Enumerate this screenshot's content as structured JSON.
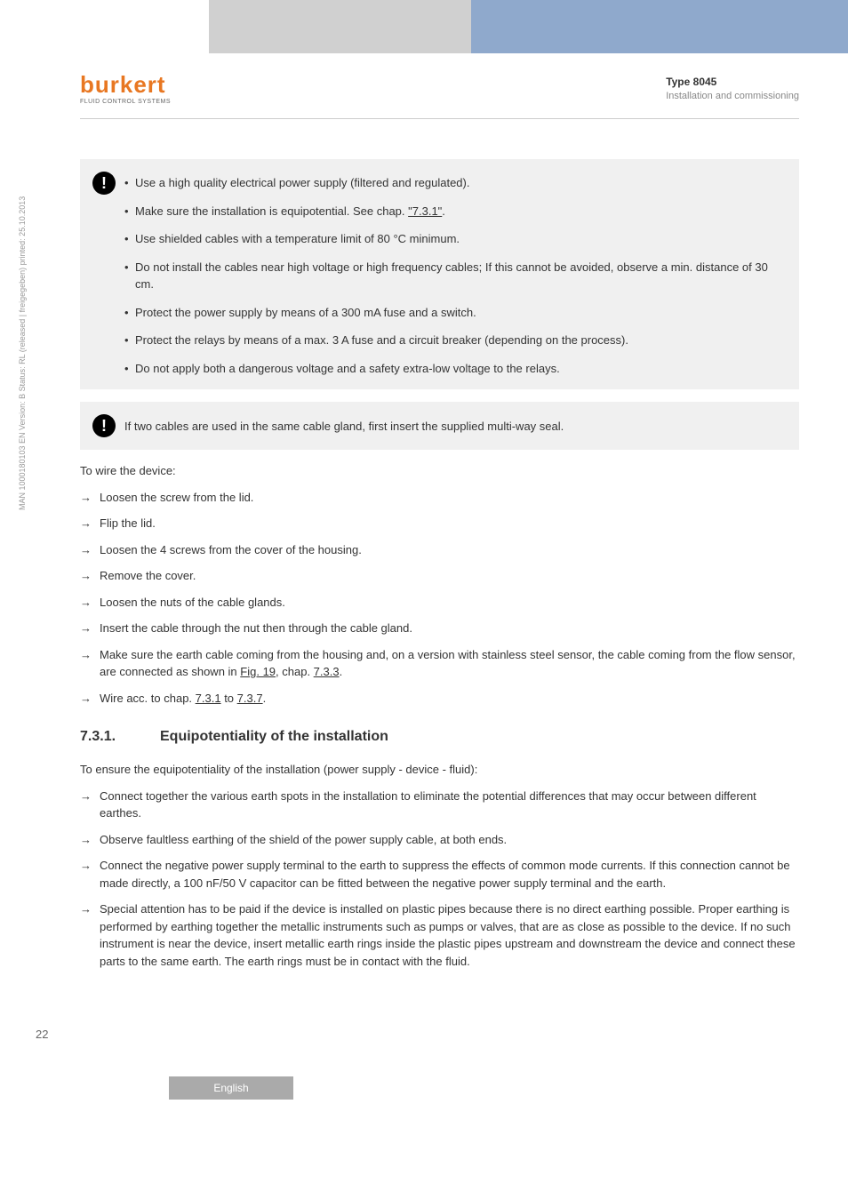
{
  "header": {
    "type_label": "Type 8045",
    "subtitle": "Installation and commissioning"
  },
  "logo": {
    "name": "burkert",
    "tagline": "FLUID CONTROL SYSTEMS"
  },
  "sidebar": "MAN 1000180103 EN Version: B Status: RL (released | freigegeben) printed: 25.10.2013",
  "callout1": {
    "items": [
      "Use a high quality electrical power supply (filtered and regulated).",
      "Make sure the installation is equipotential. See chap. ",
      "Use shielded cables with a temperature limit of 80 °C minimum.",
      "Do not install the cables near high voltage or high frequency cables; If this cannot be avoided, observe a min. distance of 30 cm.",
      "Protect the power supply by means of a 300 mA fuse and a switch.",
      "Protect the relays by means of a max. 3 A fuse and a circuit breaker (depending on the process).",
      "Do not apply both a dangerous voltage and a safety extra-low voltage to the relays."
    ],
    "link731": "\"7.3.1\""
  },
  "callout2": "If two cables are used in the same cable gland, first insert the supplied multi-way seal.",
  "intro": "To wire the device:",
  "steps": [
    "Loosen the screw from the lid.",
    "Flip the lid.",
    "Loosen the 4 screws from the cover of the housing.",
    "Remove the cover.",
    "Loosen the nuts of the cable glands.",
    "Insert the cable through the nut then through the cable gland."
  ],
  "step_fig": {
    "pre": "Make sure the earth cable coming from the housing and, on a version with stainless steel sensor, the cable coming from the flow sensor, are connected as shown in ",
    "link_fig": "Fig. 19",
    "mid": ", chap. ",
    "link_ch": "7.3.3",
    "post": "."
  },
  "step_wire": {
    "pre": "Wire acc. to chap. ",
    "l1": "7.3.1",
    "mid": " to ",
    "l2": "7.3.7",
    "post": "."
  },
  "section": {
    "num": "7.3.1.",
    "title": "Equipotentiality of the installation"
  },
  "equip_intro": "To ensure the equipotentiality of the installation (power supply - device - fluid):",
  "equip_steps": [
    "Connect together the various earth spots in the installation to eliminate the potential differences that may occur between different earthes.",
    "Observe faultless earthing of the shield of the power supply cable, at both ends.",
    "Connect the negative power supply terminal to the earth to suppress the effects of common mode currents. If this connection cannot be made directly, a 100 nF/50 V capacitor can be fitted between the negative power supply terminal and the earth.",
    "Special attention has to be paid if the device is installed on plastic pipes because there is no direct earthing possible. Proper earthing is performed by earthing together the metallic instruments such as pumps or valves, that are as close as possible to the device. If no such instrument is near the device, insert metallic earth rings inside the plastic pipes upstream and downstream the device and connect these parts to the same earth. The earth rings must be in contact with the fluid."
  ],
  "page_num": "22",
  "footer_lang": "English"
}
